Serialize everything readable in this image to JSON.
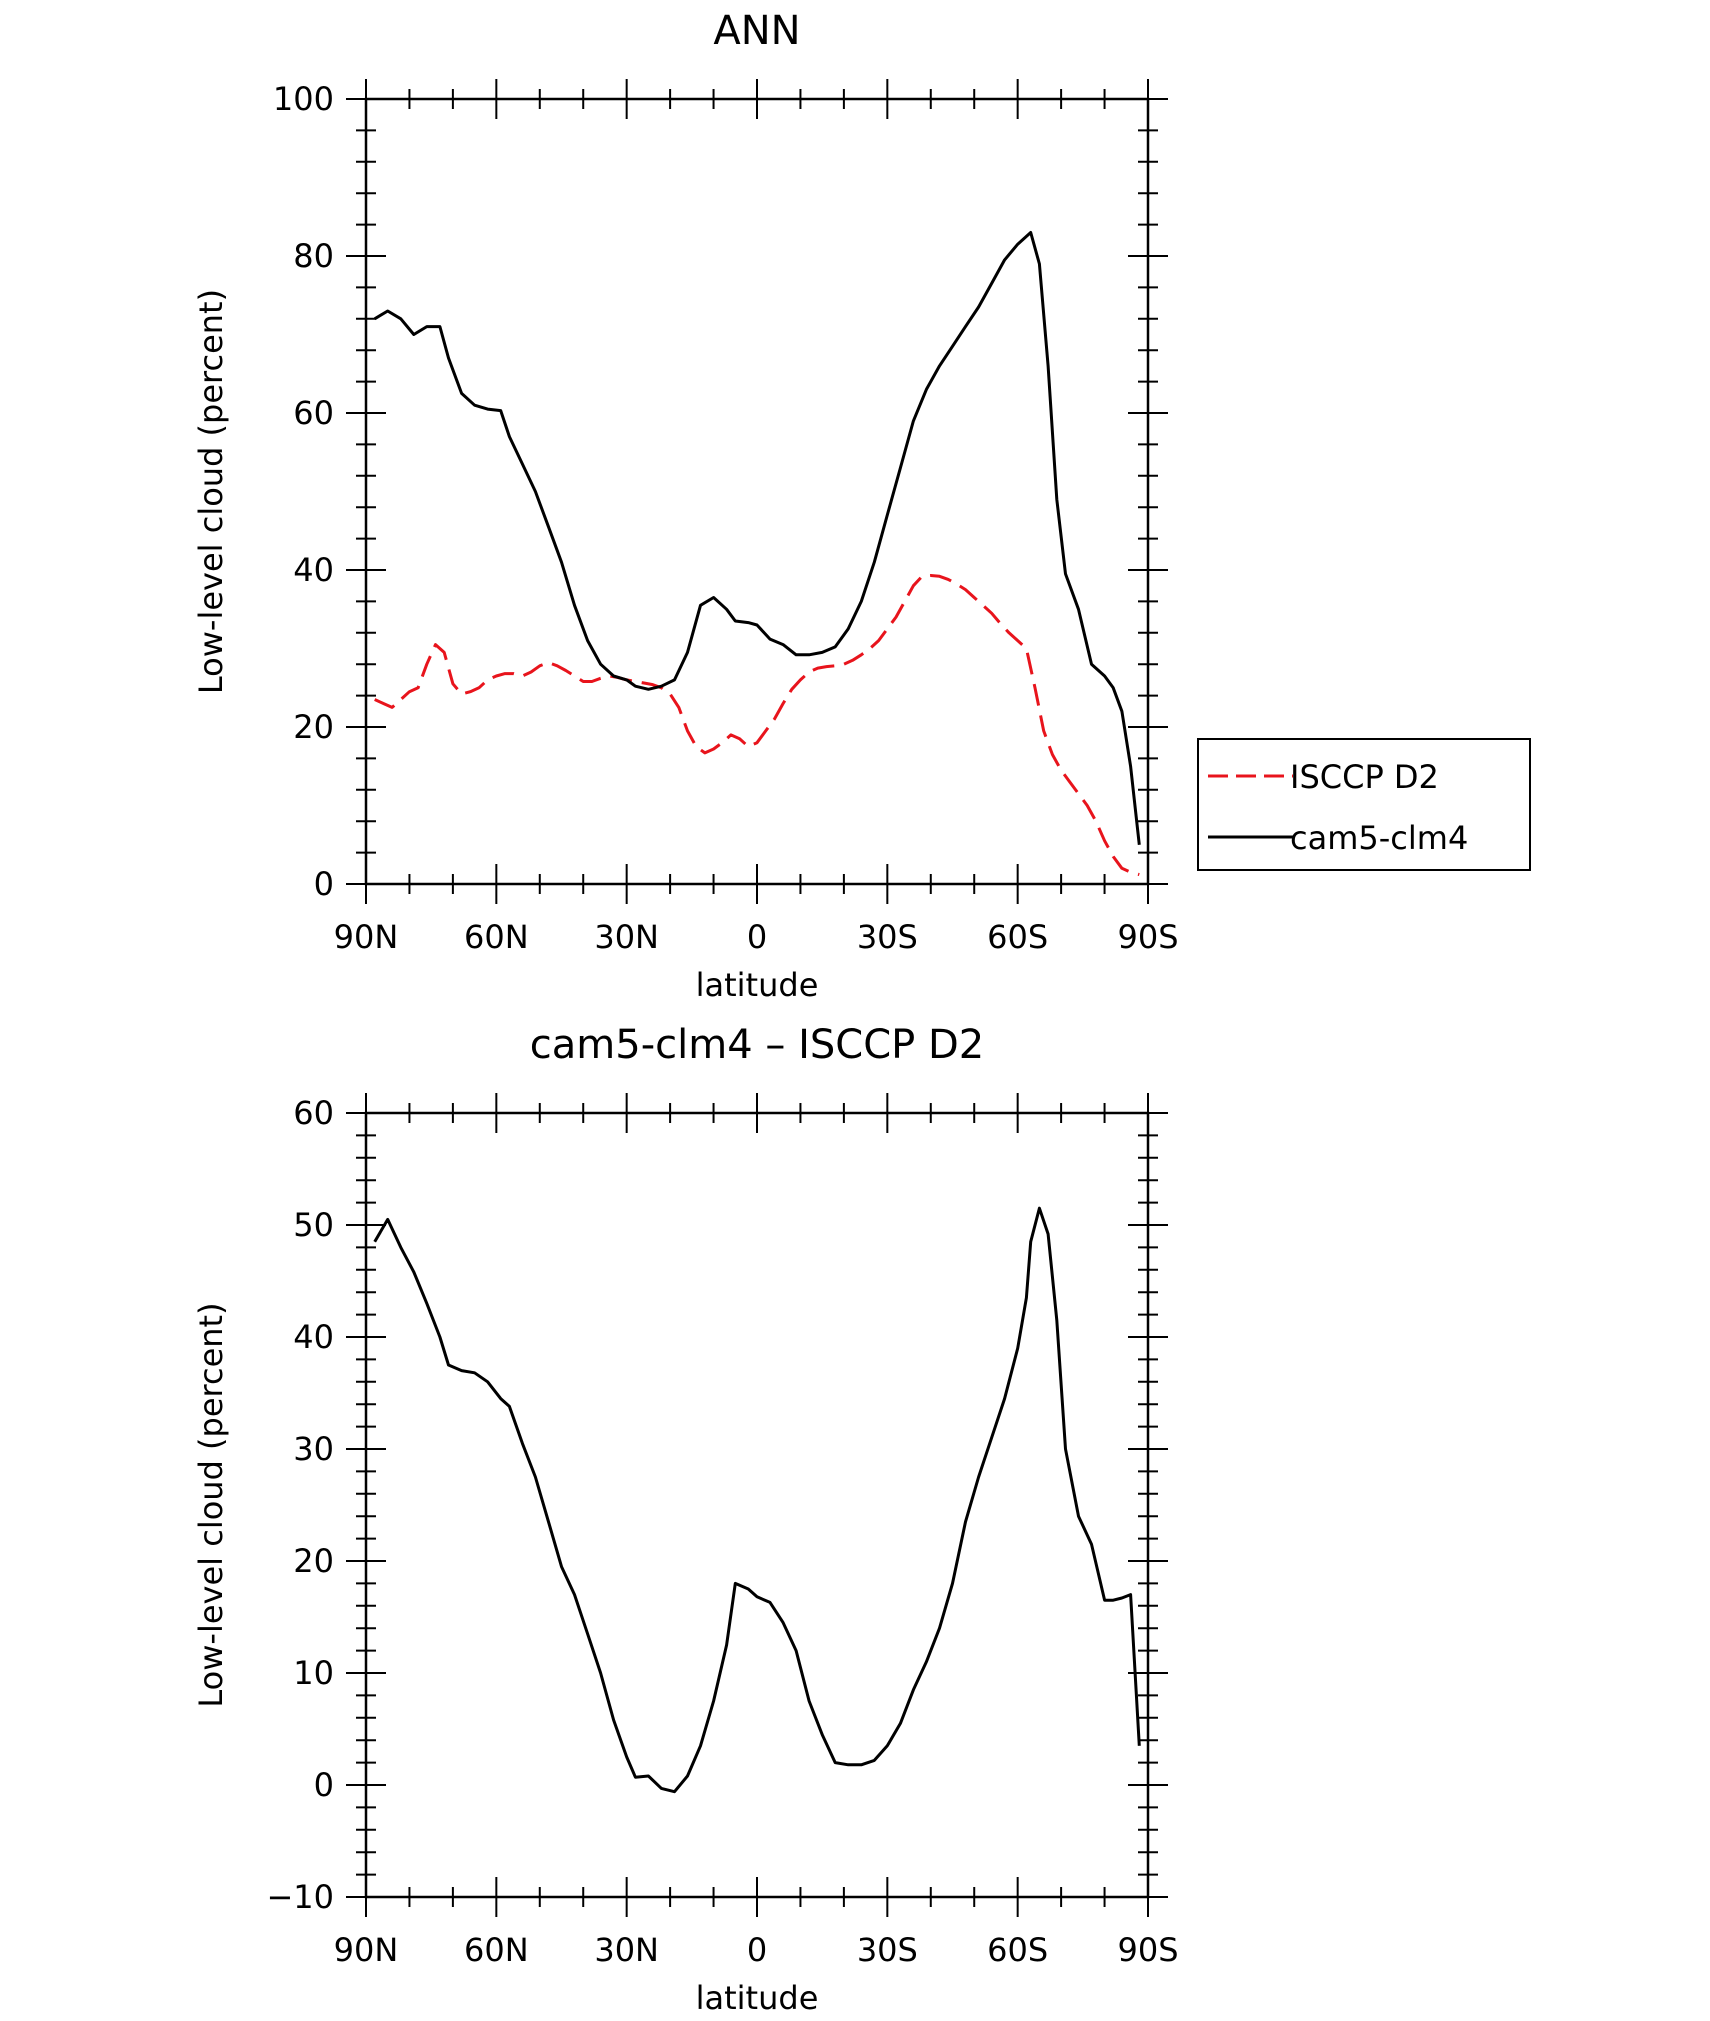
{
  "chart_data": [
    {
      "type": "line",
      "title": "ANN",
      "xlabel": "latitude",
      "ylabel": "Low-level cloud (percent)",
      "xticks": [
        "90N",
        "60N",
        "30N",
        "0",
        "30S",
        "60S",
        "90S"
      ],
      "xtick_values": [
        90,
        60,
        30,
        0,
        -30,
        -60,
        -90
      ],
      "xlim": [
        90,
        -90
      ],
      "ylim": [
        0,
        100
      ],
      "yticks": [
        "0",
        "20",
        "40",
        "60",
        "80",
        "100"
      ],
      "ytick_values": [
        0,
        20,
        40,
        60,
        80,
        100
      ],
      "legend_position": "right",
      "series": [
        {
          "name": "ISCCP D2",
          "color": "#e8141c",
          "style": "dashed",
          "x": [
            88,
            86,
            84,
            82,
            80,
            78,
            76,
            74,
            72,
            70,
            68,
            66,
            64,
            62,
            60,
            58,
            56,
            54,
            52,
            50,
            48,
            46,
            44,
            42,
            40,
            38,
            36,
            34,
            32,
            30,
            28,
            26,
            24,
            22,
            20,
            18,
            16,
            14,
            12,
            10,
            8,
            6,
            4,
            2,
            0,
            -2,
            -4,
            -6,
            -8,
            -10,
            -12,
            -14,
            -16,
            -18,
            -20,
            -22,
            -24,
            -26,
            -28,
            -30,
            -32,
            -34,
            -36,
            -38,
            -40,
            -42,
            -44,
            -46,
            -48,
            -50,
            -52,
            -54,
            -56,
            -58,
            -60,
            -62,
            -64,
            -66,
            -68,
            -70,
            -72,
            -74,
            -76,
            -78,
            -80,
            -82,
            -84,
            -86,
            -88
          ],
          "y": [
            23.5,
            23,
            22.5,
            23.5,
            24.5,
            25,
            28,
            30.5,
            29.5,
            25.5,
            24.2,
            24.5,
            25,
            26,
            26.5,
            26.8,
            26.8,
            26.5,
            27,
            27.8,
            28.2,
            27.8,
            27.2,
            26.5,
            25.8,
            25.8,
            26.2,
            26.5,
            26.3,
            26,
            25.8,
            25.6,
            25.4,
            25,
            24.2,
            22.5,
            19.5,
            17.5,
            16.7,
            17.2,
            18,
            19,
            18.5,
            17.5,
            18,
            19.5,
            21,
            23,
            24.8,
            26,
            27,
            27.5,
            27.7,
            27.8,
            28,
            28.5,
            29.2,
            30,
            31,
            32.5,
            34,
            36,
            38,
            39.2,
            39.3,
            39.2,
            38.8,
            38.2,
            37.5,
            36.5,
            35.5,
            34.5,
            33.2,
            32,
            31,
            30,
            25,
            19.5,
            16.5,
            14.5,
            13,
            11.5,
            10,
            8,
            5.5,
            3.5,
            2,
            1.5,
            1.2
          ]
        },
        {
          "name": "cam5-clm4",
          "color": "#000000",
          "style": "solid",
          "x": [
            88,
            85,
            82,
            79,
            76,
            73,
            71,
            68,
            65,
            62,
            59,
            57,
            54,
            51,
            48,
            45,
            42,
            39,
            36,
            33,
            30,
            28,
            25,
            22,
            19,
            16,
            13,
            10,
            7,
            5,
            2,
            0,
            -3,
            -6,
            -9,
            -12,
            -15,
            -18,
            -21,
            -24,
            -27,
            -30,
            -33,
            -36,
            -39,
            -42,
            -45,
            -48,
            -51,
            -54,
            -57,
            -60,
            -62,
            -63,
            -65,
            -67,
            -69,
            -71,
            -74,
            -77,
            -80,
            -82,
            -84,
            -86,
            -88
          ],
          "y": [
            72,
            73,
            72,
            70,
            71,
            71,
            67,
            62.5,
            61,
            60.5,
            60.3,
            57,
            53.5,
            50,
            45.5,
            41,
            35.5,
            31,
            28,
            26.5,
            26,
            25.2,
            24.8,
            25.2,
            26,
            29.5,
            35.5,
            36.5,
            35,
            33.5,
            33.3,
            33,
            31.2,
            30.5,
            29.2,
            29.2,
            29.5,
            30.2,
            32.5,
            36,
            41,
            47,
            53,
            59,
            63,
            66,
            68.5,
            71,
            73.5,
            76.5,
            79.5,
            81.5,
            82.5,
            83,
            79,
            66,
            49,
            39.5,
            35,
            28,
            26.5,
            25,
            22,
            15,
            5
          ]
        }
      ]
    },
    {
      "type": "line",
      "title": "cam5-clm4 – ISCCP D2",
      "xlabel": "latitude",
      "ylabel": "Low-level cloud (percent)",
      "xticks": [
        "90N",
        "60N",
        "30N",
        "0",
        "30S",
        "60S",
        "90S"
      ],
      "xtick_values": [
        90,
        60,
        30,
        0,
        -30,
        -60,
        -90
      ],
      "xlim": [
        90,
        -90
      ],
      "ylim": [
        -10,
        60
      ],
      "yticks": [
        "−10",
        "0",
        "10",
        "20",
        "30",
        "40",
        "50",
        "60"
      ],
      "ytick_values": [
        -10,
        0,
        10,
        20,
        30,
        40,
        50,
        60
      ],
      "series": [
        {
          "name": "",
          "color": "#000000",
          "style": "solid",
          "x": [
            88,
            85,
            82,
            79,
            76,
            73,
            71,
            68,
            65,
            62,
            59,
            57,
            54,
            51,
            48,
            45,
            42,
            39,
            36,
            33,
            30,
            28,
            25,
            22,
            19,
            16,
            13,
            10,
            7,
            5,
            2,
            0,
            -3,
            -6,
            -9,
            -12,
            -15,
            -18,
            -21,
            -24,
            -27,
            -30,
            -33,
            -36,
            -39,
            -42,
            -45,
            -48,
            -51,
            -54,
            -57,
            -60,
            -62,
            -63,
            -65,
            -67,
            -69,
            -71,
            -74,
            -77,
            -80,
            -82,
            -84,
            -86,
            -88
          ],
          "y": [
            48.5,
            50.5,
            48,
            45.8,
            43,
            40,
            37.5,
            37,
            36.8,
            36,
            34.5,
            33.8,
            30.5,
            27.5,
            23.5,
            19.5,
            17,
            13.5,
            10,
            5.8,
            2.5,
            0.7,
            0.8,
            -0.3,
            -0.6,
            0.8,
            3.5,
            7.5,
            12.5,
            18,
            17.5,
            16.8,
            16.3,
            14.5,
            12,
            7.5,
            4.5,
            2,
            1.8,
            1.8,
            2.2,
            3.5,
            5.5,
            8.5,
            11,
            14,
            18,
            23.5,
            27.5,
            31,
            34.5,
            39,
            43.5,
            48.5,
            51.5,
            49.2,
            41.5,
            30,
            24,
            21.5,
            16.5,
            16.5,
            16.7,
            17,
            3.5
          ]
        }
      ]
    }
  ]
}
